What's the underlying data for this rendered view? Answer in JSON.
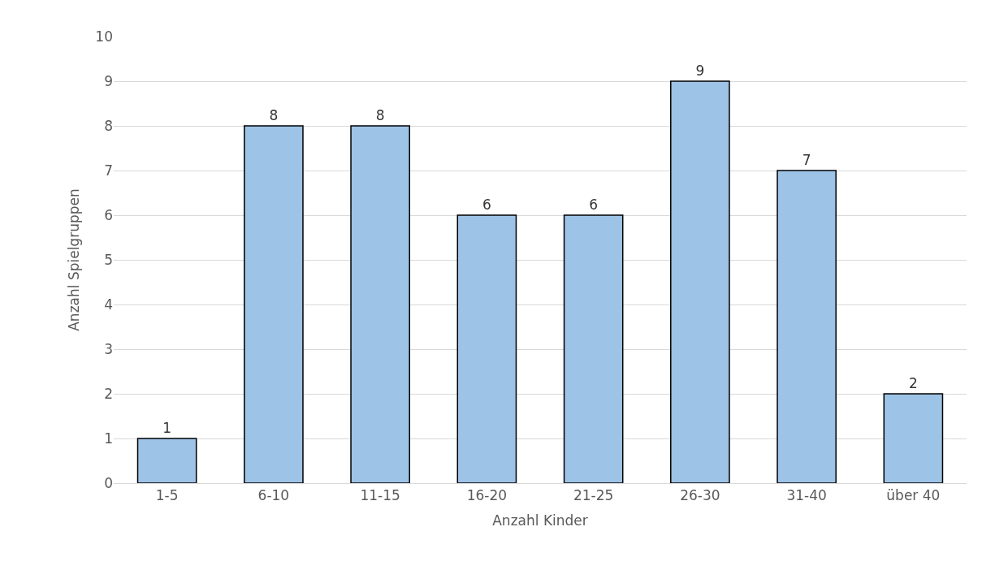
{
  "chart_data": {
    "type": "bar",
    "xlabel": "Anzahl Kinder",
    "ylabel": "Anzahl Spielgruppen",
    "categories": [
      "1-5",
      "6-10",
      "11-15",
      "16-20",
      "21-25",
      "26-30",
      "31-40",
      "über 40"
    ],
    "values": [
      1,
      8,
      8,
      6,
      6,
      9,
      7,
      2
    ],
    "color": "#9dc3e6",
    "ylim": [
      0,
      10
    ],
    "yticks": [
      0,
      1,
      2,
      3,
      4,
      5,
      6,
      7,
      8,
      9,
      10
    ],
    "grid": "y",
    "data_labels": true
  }
}
